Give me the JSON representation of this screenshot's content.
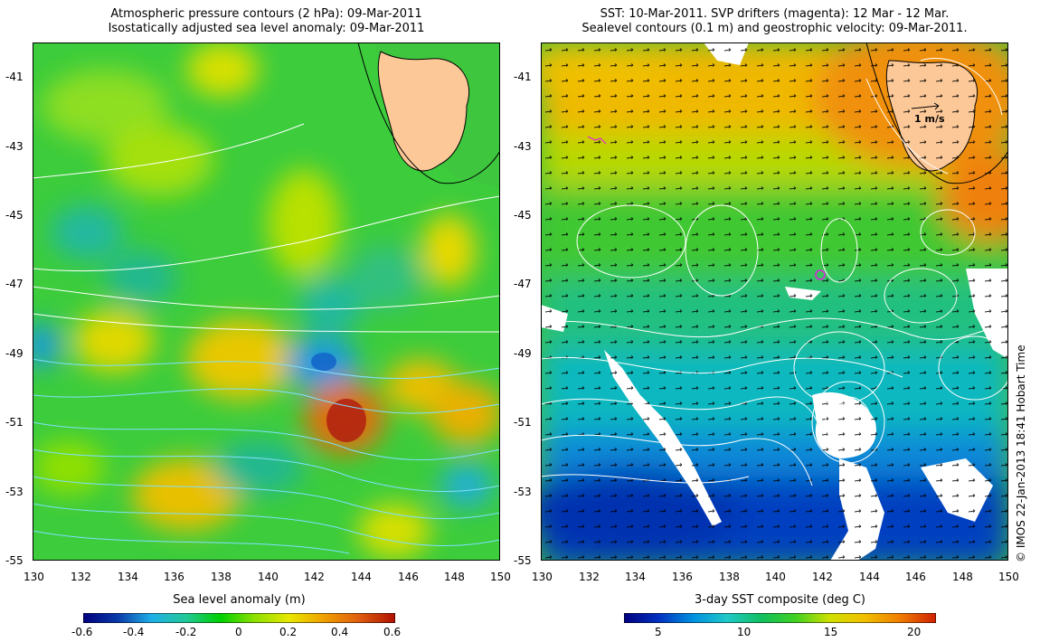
{
  "left_panel": {
    "title_line1": "Atmospheric pressure contours (2 hPa): 09-Mar-2011",
    "title_line2": "Isostatically adjusted sea level anomaly: 09-Mar-2011",
    "y_ticks": [
      "-41",
      "-43",
      "-45",
      "-47",
      "-49",
      "-51",
      "-53",
      "-55"
    ],
    "x_ticks": [
      "130",
      "132",
      "134",
      "136",
      "138",
      "140",
      "142",
      "144",
      "146",
      "148",
      "150"
    ],
    "colorbar_title": "Sea level anomaly (m)",
    "colorbar_ticks": [
      "-0.6",
      "-0.4",
      "-0.2",
      "0",
      "0.2",
      "0.4",
      "0.6"
    ],
    "colorbar_colors": [
      "#00007f",
      "#0a3aa8",
      "#1fb0e8",
      "#20c896",
      "#00d000",
      "#8ee000",
      "#e8e800",
      "#f0a000",
      "#e06010",
      "#b01000"
    ]
  },
  "right_panel": {
    "title_line1": "SST: 10-Mar-2011. SVP drifters (magenta): 12 Mar - 12 Mar.",
    "title_line2": "Sealevel contours (0.1 m) and geostrophic velocity: 09-Mar-2011.",
    "y_ticks": [
      "-41",
      "-43",
      "-45",
      "-47",
      "-49",
      "-51",
      "-53",
      "-55"
    ],
    "x_ticks": [
      "130",
      "132",
      "134",
      "136",
      "138",
      "140",
      "142",
      "144",
      "146",
      "148",
      "150"
    ],
    "velocity_scale_label": "1 m/s",
    "colorbar_title": "3-day SST composite (deg C)",
    "colorbar_ticks": [
      "5",
      "10",
      "15",
      "20"
    ],
    "colorbar_colors": [
      "#00007f",
      "#0030c0",
      "#0090e0",
      "#20c8c8",
      "#10c060",
      "#40d020",
      "#d0e000",
      "#f0c000",
      "#f08000",
      "#d02000"
    ]
  },
  "credit": "© IMOS 22-Jan-2013 18:41 Hobart Time"
}
